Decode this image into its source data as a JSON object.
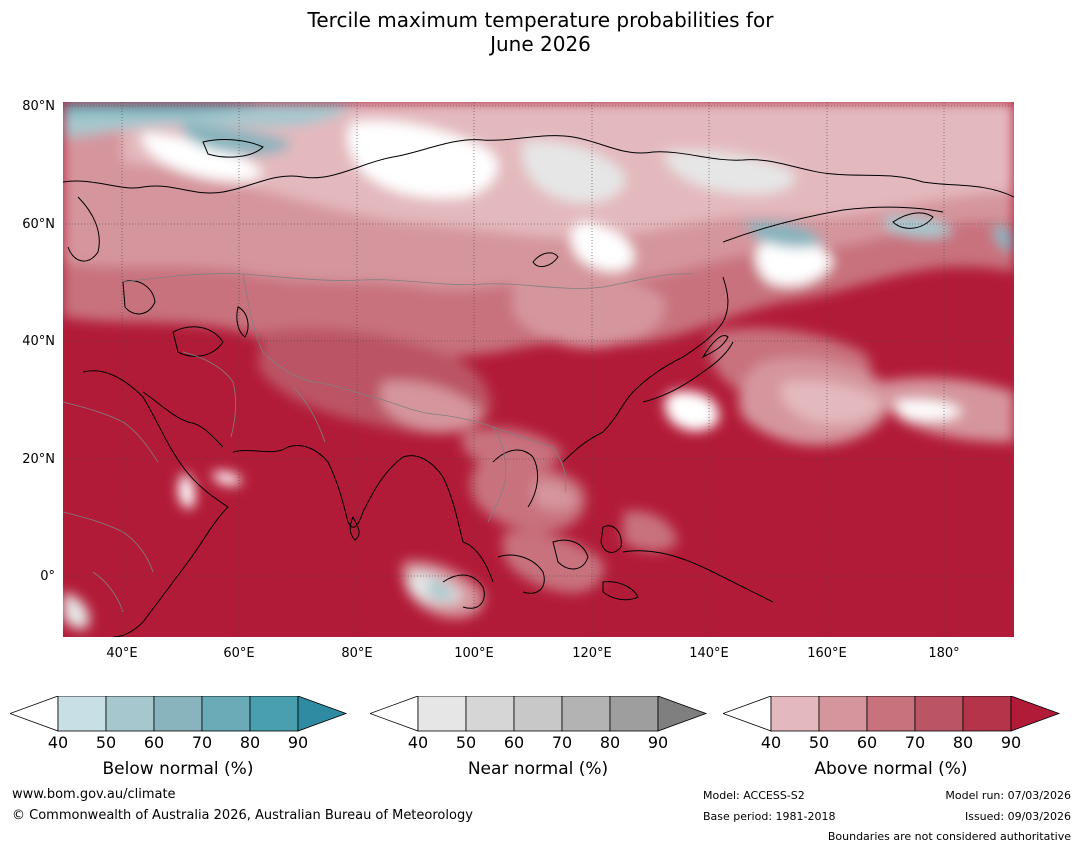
{
  "title": {
    "line1": "Tercile maximum temperature probabilities for",
    "line2": "June 2026"
  },
  "map": {
    "lat_labels": [
      "80°N",
      "60°N",
      "40°N",
      "20°N",
      "0°"
    ],
    "lon_labels": [
      "40°E",
      "60°E",
      "80°E",
      "100°E",
      "120°E",
      "140°E",
      "160°E",
      "180°"
    ],
    "colors": {
      "above": [
        "#ffffff",
        "#e3b9be",
        "#d5959d",
        "#c8727e",
        "#bb5465",
        "#b5344a",
        "#b21b38"
      ],
      "near": [
        "#ffffff",
        "#e6e6e6",
        "#d6d6d6",
        "#c8c8c8",
        "#b3b3b3",
        "#9e9e9e",
        "#7f7f7f"
      ],
      "below": [
        "#ffffff",
        "#c8e0e5",
        "#a6c7cd",
        "#89b3bd",
        "#6aabb7",
        "#4a9fae",
        "#2f8ba1"
      ]
    }
  },
  "colorbars": [
    {
      "name": "below",
      "label": "Below normal (%)",
      "ticks": [
        "40",
        "50",
        "60",
        "70",
        "80",
        "90"
      ],
      "colors": [
        "#c8e0e5",
        "#a6c7cd",
        "#89b3bd",
        "#6aabb7",
        "#4a9fae"
      ],
      "over": "#2f8ba1"
    },
    {
      "name": "near",
      "label": "Near normal (%)",
      "ticks": [
        "40",
        "50",
        "60",
        "70",
        "80",
        "90"
      ],
      "colors": [
        "#e6e6e6",
        "#d6d6d6",
        "#c8c8c8",
        "#b3b3b3",
        "#9e9e9e"
      ],
      "over": "#7f7f7f"
    },
    {
      "name": "above",
      "label": "Above normal (%)",
      "ticks": [
        "40",
        "50",
        "60",
        "70",
        "80",
        "90"
      ],
      "colors": [
        "#e3b9be",
        "#d5959d",
        "#c8727e",
        "#bb5465",
        "#b5344a"
      ],
      "over": "#b21b38"
    }
  ],
  "footer": {
    "website": "www.bom.gov.au/climate",
    "copyright": "© Commonwealth of Australia 2026, Australian Bureau of Meteorology",
    "model": "Model: ACCESS-S2",
    "base_period": "Base period: 1981-2018",
    "model_run": "Model run: 07/03/2026",
    "issued": "Issued: 09/03/2026",
    "boundaries": "Boundaries are not considered authoritative"
  }
}
